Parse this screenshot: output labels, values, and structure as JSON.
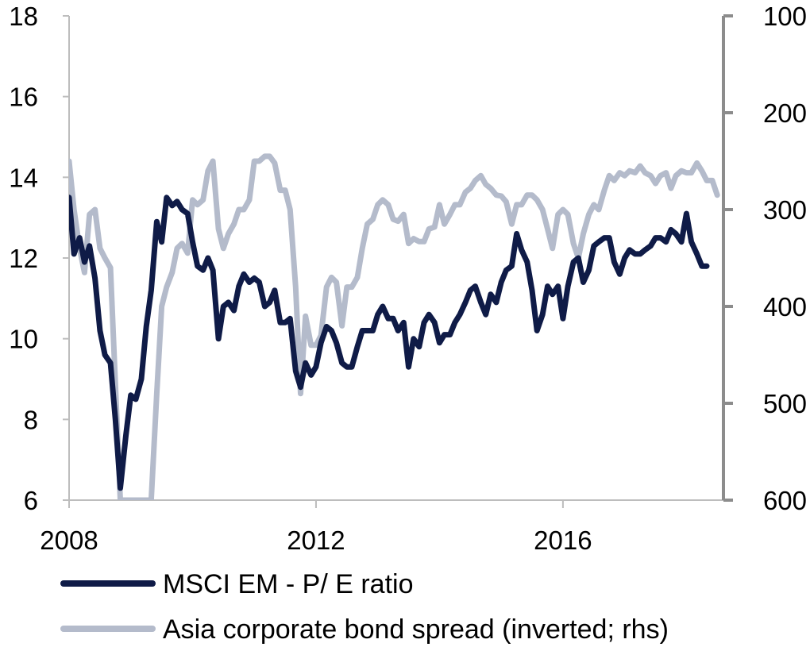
{
  "chart_data": {
    "type": "line",
    "title": "",
    "xlabel": "",
    "ylabel": "",
    "y2label": "",
    "grid": false,
    "legend_position": "bottom",
    "x_ticks": [
      {
        "value": 2008,
        "label": "2008"
      },
      {
        "value": 2012,
        "label": "2012"
      },
      {
        "value": 2016,
        "label": "2016"
      }
    ],
    "ylim": [
      6,
      18
    ],
    "y_ticks": [
      {
        "value": 6,
        "label": "6"
      },
      {
        "value": 8,
        "label": "8"
      },
      {
        "value": 10,
        "label": "10"
      },
      {
        "value": 12,
        "label": "12"
      },
      {
        "value": 14,
        "label": "14"
      },
      {
        "value": 16,
        "label": "16"
      },
      {
        "value": 18,
        "label": "18"
      }
    ],
    "y2lim": [
      100,
      600
    ],
    "y2_inverted": true,
    "y2_ticks": [
      {
        "value": 100,
        "label": "100"
      },
      {
        "value": 200,
        "label": "200"
      },
      {
        "value": 300,
        "label": "300"
      },
      {
        "value": 400,
        "label": "400"
      },
      {
        "value": 500,
        "label": "500"
      },
      {
        "value": 600,
        "label": "600"
      }
    ],
    "series": [
      {
        "name": "MSCI EM - P/ E ratio",
        "axis": "left",
        "color": "#0f1b47",
        "points": [
          [
            2008.0,
            13.5
          ],
          [
            2008.08,
            12.1
          ],
          [
            2008.17,
            12.5
          ],
          [
            2008.25,
            11.9
          ],
          [
            2008.33,
            12.3
          ],
          [
            2008.42,
            11.5
          ],
          [
            2008.5,
            10.2
          ],
          [
            2008.58,
            9.6
          ],
          [
            2008.67,
            9.4
          ],
          [
            2008.75,
            8.0
          ],
          [
            2008.83,
            6.3
          ],
          [
            2008.92,
            7.6
          ],
          [
            2009.0,
            8.6
          ],
          [
            2009.08,
            8.5
          ],
          [
            2009.17,
            9.0
          ],
          [
            2009.25,
            10.3
          ],
          [
            2009.33,
            11.2
          ],
          [
            2009.42,
            12.9
          ],
          [
            2009.5,
            12.4
          ],
          [
            2009.58,
            13.5
          ],
          [
            2009.67,
            13.3
          ],
          [
            2009.75,
            13.4
          ],
          [
            2009.83,
            13.2
          ],
          [
            2009.92,
            13.1
          ],
          [
            2010.0,
            12.4
          ],
          [
            2010.08,
            11.8
          ],
          [
            2010.17,
            11.7
          ],
          [
            2010.25,
            12.0
          ],
          [
            2010.33,
            11.7
          ],
          [
            2010.42,
            10.0
          ],
          [
            2010.5,
            10.8
          ],
          [
            2010.58,
            10.9
          ],
          [
            2010.67,
            10.7
          ],
          [
            2010.75,
            11.3
          ],
          [
            2010.83,
            11.6
          ],
          [
            2010.92,
            11.4
          ],
          [
            2011.0,
            11.5
          ],
          [
            2011.08,
            11.4
          ],
          [
            2011.17,
            10.8
          ],
          [
            2011.25,
            10.9
          ],
          [
            2011.33,
            11.2
          ],
          [
            2011.42,
            10.4
          ],
          [
            2011.5,
            10.4
          ],
          [
            2011.58,
            10.5
          ],
          [
            2011.67,
            9.2
          ],
          [
            2011.75,
            8.8
          ],
          [
            2011.83,
            9.4
          ],
          [
            2011.92,
            9.1
          ],
          [
            2012.0,
            9.3
          ],
          [
            2012.08,
            9.9
          ],
          [
            2012.17,
            10.3
          ],
          [
            2012.25,
            10.2
          ],
          [
            2012.33,
            9.9
          ],
          [
            2012.42,
            9.4
          ],
          [
            2012.5,
            9.3
          ],
          [
            2012.58,
            9.3
          ],
          [
            2012.67,
            9.8
          ],
          [
            2012.75,
            10.2
          ],
          [
            2012.83,
            10.2
          ],
          [
            2012.92,
            10.2
          ],
          [
            2013.0,
            10.6
          ],
          [
            2013.08,
            10.8
          ],
          [
            2013.17,
            10.5
          ],
          [
            2013.25,
            10.5
          ],
          [
            2013.33,
            10.2
          ],
          [
            2013.42,
            10.4
          ],
          [
            2013.5,
            9.3
          ],
          [
            2013.58,
            10.0
          ],
          [
            2013.67,
            9.8
          ],
          [
            2013.75,
            10.4
          ],
          [
            2013.83,
            10.6
          ],
          [
            2013.92,
            10.4
          ],
          [
            2014.0,
            9.9
          ],
          [
            2014.08,
            10.1
          ],
          [
            2014.17,
            10.1
          ],
          [
            2014.25,
            10.4
          ],
          [
            2014.33,
            10.6
          ],
          [
            2014.42,
            10.9
          ],
          [
            2014.5,
            11.2
          ],
          [
            2014.58,
            11.3
          ],
          [
            2014.67,
            10.9
          ],
          [
            2014.75,
            10.6
          ],
          [
            2014.83,
            11.1
          ],
          [
            2014.92,
            10.9
          ],
          [
            2015.0,
            11.4
          ],
          [
            2015.08,
            11.7
          ],
          [
            2015.17,
            11.8
          ],
          [
            2015.25,
            12.6
          ],
          [
            2015.33,
            12.2
          ],
          [
            2015.42,
            11.9
          ],
          [
            2015.5,
            11.2
          ],
          [
            2015.58,
            10.2
          ],
          [
            2015.67,
            10.6
          ],
          [
            2015.75,
            11.3
          ],
          [
            2015.83,
            11.1
          ],
          [
            2015.92,
            11.3
          ],
          [
            2016.0,
            10.5
          ],
          [
            2016.08,
            11.3
          ],
          [
            2016.17,
            11.9
          ],
          [
            2016.25,
            12.0
          ],
          [
            2016.33,
            11.4
          ],
          [
            2016.42,
            11.7
          ],
          [
            2016.5,
            12.3
          ],
          [
            2016.58,
            12.4
          ],
          [
            2016.67,
            12.5
          ],
          [
            2016.75,
            12.5
          ],
          [
            2016.83,
            11.9
          ],
          [
            2016.92,
            11.6
          ],
          [
            2017.0,
            12.0
          ],
          [
            2017.08,
            12.2
          ],
          [
            2017.17,
            12.1
          ],
          [
            2017.25,
            12.1
          ],
          [
            2017.33,
            12.2
          ],
          [
            2017.42,
            12.3
          ],
          [
            2017.5,
            12.5
          ],
          [
            2017.58,
            12.5
          ],
          [
            2017.67,
            12.4
          ],
          [
            2017.75,
            12.7
          ],
          [
            2017.83,
            12.6
          ],
          [
            2017.92,
            12.4
          ],
          [
            2018.0,
            13.1
          ],
          [
            2018.08,
            12.4
          ],
          [
            2018.17,
            12.1
          ],
          [
            2018.25,
            11.8
          ],
          [
            2018.33,
            11.8
          ]
        ]
      },
      {
        "name": "Asia corporate bond spread (inverted; rhs)",
        "axis": "right",
        "color": "#b4bbcb",
        "points": [
          [
            2008.0,
            250
          ],
          [
            2008.08,
            300
          ],
          [
            2008.17,
            340
          ],
          [
            2008.25,
            365
          ],
          [
            2008.33,
            305
          ],
          [
            2008.42,
            300
          ],
          [
            2008.5,
            340
          ],
          [
            2008.58,
            350
          ],
          [
            2008.67,
            360
          ],
          [
            2008.75,
            480
          ],
          [
            2008.83,
            600
          ],
          [
            2009.33,
            600
          ],
          [
            2009.42,
            490
          ],
          [
            2009.5,
            400
          ],
          [
            2009.58,
            380
          ],
          [
            2009.67,
            365
          ],
          [
            2009.75,
            340
          ],
          [
            2009.83,
            335
          ],
          [
            2009.92,
            345
          ],
          [
            2010.0,
            290
          ],
          [
            2010.08,
            295
          ],
          [
            2010.17,
            290
          ],
          [
            2010.25,
            260
          ],
          [
            2010.33,
            250
          ],
          [
            2010.42,
            320
          ],
          [
            2010.5,
            340
          ],
          [
            2010.58,
            325
          ],
          [
            2010.67,
            315
          ],
          [
            2010.75,
            300
          ],
          [
            2010.83,
            300
          ],
          [
            2010.92,
            290
          ],
          [
            2011.0,
            250
          ],
          [
            2011.08,
            250
          ],
          [
            2011.17,
            245
          ],
          [
            2011.25,
            245
          ],
          [
            2011.33,
            252
          ],
          [
            2011.42,
            280
          ],
          [
            2011.5,
            280
          ],
          [
            2011.58,
            300
          ],
          [
            2011.67,
            380
          ],
          [
            2011.75,
            490
          ],
          [
            2011.83,
            410
          ],
          [
            2011.92,
            440
          ],
          [
            2012.0,
            440
          ],
          [
            2012.08,
            430
          ],
          [
            2012.17,
            380
          ],
          [
            2012.25,
            370
          ],
          [
            2012.33,
            375
          ],
          [
            2012.42,
            420
          ],
          [
            2012.5,
            380
          ],
          [
            2012.58,
            380
          ],
          [
            2012.67,
            370
          ],
          [
            2012.75,
            340
          ],
          [
            2012.83,
            315
          ],
          [
            2012.92,
            310
          ],
          [
            2013.0,
            295
          ],
          [
            2013.08,
            290
          ],
          [
            2013.17,
            295
          ],
          [
            2013.25,
            310
          ],
          [
            2013.33,
            312
          ],
          [
            2013.42,
            305
          ],
          [
            2013.5,
            335
          ],
          [
            2013.58,
            330
          ],
          [
            2013.67,
            333
          ],
          [
            2013.75,
            333
          ],
          [
            2013.83,
            320
          ],
          [
            2013.92,
            318
          ],
          [
            2014.0,
            295
          ],
          [
            2014.08,
            315
          ],
          [
            2014.17,
            305
          ],
          [
            2014.25,
            295
          ],
          [
            2014.33,
            295
          ],
          [
            2014.42,
            282
          ],
          [
            2014.5,
            278
          ],
          [
            2014.58,
            270
          ],
          [
            2014.67,
            265
          ],
          [
            2014.75,
            274
          ],
          [
            2014.83,
            278
          ],
          [
            2014.92,
            285
          ],
          [
            2015.0,
            286
          ],
          [
            2015.08,
            292
          ],
          [
            2015.17,
            315
          ],
          [
            2015.25,
            295
          ],
          [
            2015.33,
            295
          ],
          [
            2015.42,
            285
          ],
          [
            2015.5,
            285
          ],
          [
            2015.58,
            290
          ],
          [
            2015.67,
            300
          ],
          [
            2015.75,
            320
          ],
          [
            2015.83,
            340
          ],
          [
            2015.92,
            305
          ],
          [
            2016.0,
            300
          ],
          [
            2016.08,
            305
          ],
          [
            2016.17,
            335
          ],
          [
            2016.25,
            350
          ],
          [
            2016.33,
            325
          ],
          [
            2016.42,
            305
          ],
          [
            2016.5,
            295
          ],
          [
            2016.58,
            300
          ],
          [
            2016.67,
            280
          ],
          [
            2016.75,
            265
          ],
          [
            2016.83,
            270
          ],
          [
            2016.92,
            262
          ],
          [
            2017.0,
            265
          ],
          [
            2017.08,
            260
          ],
          [
            2017.17,
            262
          ],
          [
            2017.25,
            255
          ],
          [
            2017.33,
            262
          ],
          [
            2017.42,
            265
          ],
          [
            2017.5,
            273
          ],
          [
            2017.58,
            265
          ],
          [
            2017.67,
            262
          ],
          [
            2017.75,
            278
          ],
          [
            2017.83,
            265
          ],
          [
            2017.92,
            260
          ],
          [
            2018.0,
            262
          ],
          [
            2018.08,
            262
          ],
          [
            2018.17,
            252
          ],
          [
            2018.25,
            260
          ],
          [
            2018.33,
            270
          ],
          [
            2018.42,
            270
          ],
          [
            2018.5,
            285
          ]
        ]
      }
    ]
  }
}
